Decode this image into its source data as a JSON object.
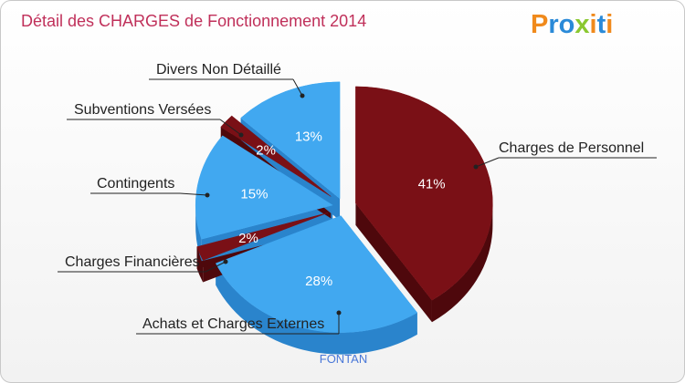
{
  "header": {
    "title": "Détail des CHARGES de Fonctionnement 2014",
    "logo_text": "Proxiti"
  },
  "footer": {
    "commune": "FONTAN"
  },
  "colors": {
    "dark_red": "#7a1016",
    "dark_red_side": "#4e080c",
    "blue": "#41a8f0",
    "blue_side": "#2a84cc",
    "title": "#c0305a",
    "footer": "#4a78d8"
  },
  "chart_data": {
    "type": "pie",
    "title": "Détail des CHARGES de Fonctionnement 2014",
    "slices": [
      {
        "label": "Charges de Personnel",
        "value": 41,
        "pct_label": "41%",
        "color": "dark_red"
      },
      {
        "label": "Achats et Charges Externes",
        "value": 28,
        "pct_label": "28%",
        "color": "blue"
      },
      {
        "label": "Charges Financières",
        "value": 2,
        "pct_label": "2%",
        "color": "dark_red"
      },
      {
        "label": "Contingents",
        "value": 15,
        "pct_label": "15%",
        "color": "blue"
      },
      {
        "label": "Subventions Versées",
        "value": 2,
        "pct_label": "2%",
        "color": "dark_red"
      },
      {
        "label": "Divers Non Détaillé",
        "value": 13,
        "pct_label": "13%",
        "color": "blue"
      }
    ]
  }
}
